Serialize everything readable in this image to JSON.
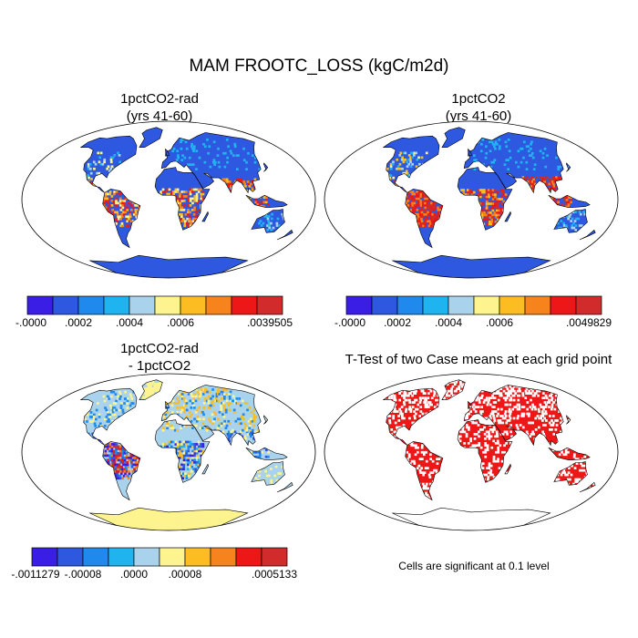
{
  "title": "MAM FROOTC_LOSS (kgC/m2d)",
  "palette": [
    "#3a1ee6",
    "#2e58e0",
    "#1f89ee",
    "#1fb4f0",
    "#a9d3ec",
    "#fdf38f",
    "#fbbd22",
    "#f7831d",
    "#ee1717",
    "#d22b2b"
  ],
  "ocean_color": "#ffffff",
  "panels": [
    {
      "id": "tl",
      "title_line1": "1pctCO2-rad",
      "title_line2": "(yrs 41-60)",
      "land_color": "#2e58e0",
      "colorbar_labels": [
        "-.0000",
        ".0002",
        ".0004",
        ".0006",
        ".0039505"
      ]
    },
    {
      "id": "tr",
      "title_line1": "1pctCO2",
      "title_line2": "(yrs 41-60)",
      "land_color": "#2e58e0",
      "colorbar_labels": [
        "-.0000",
        ".0002",
        ".0004",
        ".0006",
        ".0049829"
      ]
    },
    {
      "id": "bl",
      "title_line1": "1pctCO2-rad",
      "title_line2": "- 1pctCO2",
      "land_color": "#a9d3ec",
      "colorbar_labels": [
        "-.0011279",
        "-.00008",
        ".0000",
        ".00008",
        ".0005133"
      ]
    },
    {
      "id": "br",
      "title_line1": "T-Test of two Case means at each grid point",
      "title_line2": "",
      "land_color": "#ee1717",
      "note": "Cells are significant at 0.1 level"
    }
  ]
}
